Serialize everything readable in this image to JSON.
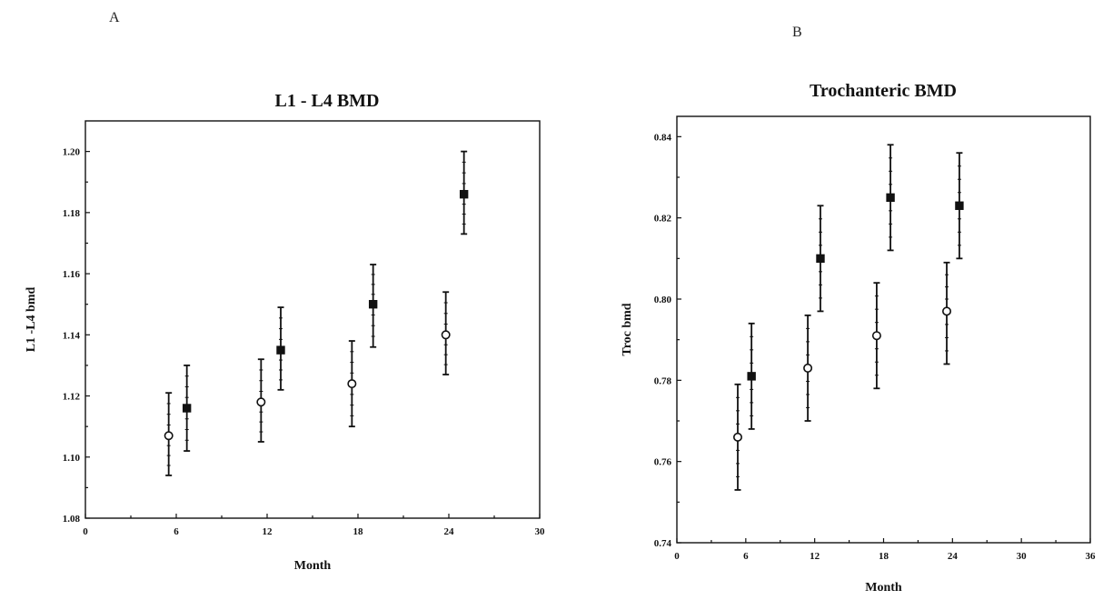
{
  "panels": {
    "A": {
      "letter": "A"
    },
    "B": {
      "letter": "B"
    }
  },
  "chart_data": [
    {
      "type": "scatter",
      "title": "L1 - L4  BMD",
      "xlabel": "Month",
      "ylabel": "L1 -L4 bmd",
      "xlim": [
        0,
        30
      ],
      "ylim": [
        1.08,
        1.21
      ],
      "xticks": [
        0,
        6,
        12,
        18,
        24,
        30
      ],
      "xtick_labels": [
        "0",
        "6",
        "12",
        "18",
        "24",
        "30"
      ],
      "yticks": [
        1.08,
        1.1,
        1.12,
        1.14,
        1.16,
        1.18,
        1.2
      ],
      "ytick_labels": [
        "1.08",
        "1.10",
        "1.12",
        "1.14",
        "1.16",
        "1.18",
        "1.20"
      ],
      "grid": false,
      "series": [
        {
          "marker": "open-circle",
          "color": "#111111",
          "points": [
            {
              "x": 5.5,
              "y": 1.107,
              "lo": 1.094,
              "hi": 1.121
            },
            {
              "x": 11.6,
              "y": 1.118,
              "lo": 1.105,
              "hi": 1.132
            },
            {
              "x": 17.6,
              "y": 1.124,
              "lo": 1.11,
              "hi": 1.138
            },
            {
              "x": 23.8,
              "y": 1.14,
              "lo": 1.127,
              "hi": 1.154
            }
          ]
        },
        {
          "marker": "filled-square",
          "color": "#111111",
          "points": [
            {
              "x": 6.7,
              "y": 1.116,
              "lo": 1.102,
              "hi": 1.13
            },
            {
              "x": 12.9,
              "y": 1.135,
              "lo": 1.122,
              "hi": 1.149
            },
            {
              "x": 19.0,
              "y": 1.15,
              "lo": 1.136,
              "hi": 1.163
            },
            {
              "x": 25.0,
              "y": 1.186,
              "lo": 1.173,
              "hi": 1.2
            }
          ]
        }
      ]
    },
    {
      "type": "scatter",
      "title": "Trochanteric BMD",
      "xlabel": "Month",
      "ylabel": "Troc bmd",
      "xlim": [
        0,
        36
      ],
      "ylim": [
        0.74,
        0.845
      ],
      "xticks": [
        0,
        6,
        12,
        18,
        24,
        30,
        36
      ],
      "xtick_labels": [
        "0",
        "6",
        "12",
        "18",
        "24",
        "30",
        "36"
      ],
      "yticks": [
        0.74,
        0.76,
        0.78,
        0.8,
        0.82,
        0.84
      ],
      "ytick_labels": [
        "0.74",
        "0.76",
        "0.78",
        "0.80",
        "0.82",
        "0.84"
      ],
      "grid": false,
      "series": [
        {
          "marker": "open-circle",
          "color": "#111111",
          "points": [
            {
              "x": 5.3,
              "y": 0.766,
              "lo": 0.753,
              "hi": 0.779
            },
            {
              "x": 11.4,
              "y": 0.783,
              "lo": 0.77,
              "hi": 0.796
            },
            {
              "x": 17.4,
              "y": 0.791,
              "lo": 0.778,
              "hi": 0.804
            },
            {
              "x": 23.5,
              "y": 0.797,
              "lo": 0.784,
              "hi": 0.809
            }
          ]
        },
        {
          "marker": "filled-square",
          "color": "#111111",
          "points": [
            {
              "x": 6.5,
              "y": 0.781,
              "lo": 0.768,
              "hi": 0.794
            },
            {
              "x": 12.5,
              "y": 0.81,
              "lo": 0.797,
              "hi": 0.823
            },
            {
              "x": 18.6,
              "y": 0.825,
              "lo": 0.812,
              "hi": 0.838
            },
            {
              "x": 24.6,
              "y": 0.823,
              "lo": 0.81,
              "hi": 0.836
            }
          ]
        }
      ]
    }
  ]
}
